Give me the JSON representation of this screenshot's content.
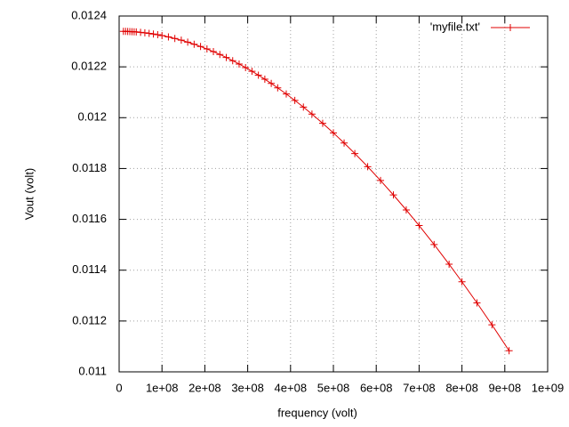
{
  "chart_data": {
    "type": "line",
    "xlabel": "frequency (volt)",
    "ylabel": "Vout (volt)",
    "series": [
      {
        "name": "'myfile.txt'",
        "color": "#e00000",
        "x": [
          10000000,
          15000000,
          20000000,
          25000000,
          30000000,
          35000000,
          40000000,
          50000000,
          60000000,
          70000000,
          80000000,
          90000000,
          100000000,
          115000000,
          130000000,
          145000000,
          160000000,
          175000000,
          190000000,
          205000000,
          220000000,
          235000000,
          250000000,
          265000000,
          280000000,
          295000000,
          310000000,
          325000000,
          340000000,
          355000000,
          370000000,
          390000000,
          410000000,
          430000000,
          450000000,
          475000000,
          500000000,
          525000000,
          550000000,
          580000000,
          610000000,
          640000000,
          670000000,
          700000000,
          735000000,
          770000000,
          800000000,
          835000000,
          870000000,
          910000000
        ],
        "values": [
          0.0123398,
          0.0123396,
          0.0123393,
          0.0123389,
          0.0123385,
          0.0123379,
          0.0123373,
          0.0123358,
          0.0123339,
          0.0123317,
          0.0123292,
          0.0123264,
          0.0123232,
          0.0123178,
          0.0123117,
          0.0123049,
          0.0122973,
          0.012289,
          0.01228,
          0.0122703,
          0.0122598,
          0.0122487,
          0.0122369,
          0.0122243,
          0.0122111,
          0.0121972,
          0.0121826,
          0.0121673,
          0.0121513,
          0.0121347,
          0.0121174,
          0.0120933,
          0.012068,
          0.0120416,
          0.012014,
          0.0119779,
          0.01194,
          0.0119004,
          0.011859,
          0.0118071,
          0.0117528,
          0.0116961,
          0.011637,
          0.0115756,
          0.011501,
          0.0114234,
          0.0113544,
          0.0112712,
          0.011185,
          0.011083
        ]
      }
    ],
    "xlim": [
      0,
      1000000000
    ],
    "xticks": [
      0,
      {
        "value": 100000000,
        "label": "1e+08"
      },
      {
        "value": 200000000,
        "label": "2e+08"
      },
      {
        "value": 300000000,
        "label": "3e+08"
      },
      {
        "value": 400000000,
        "label": "4e+08"
      },
      {
        "value": 500000000,
        "label": "5e+08"
      },
      {
        "value": 600000000,
        "label": "6e+08"
      },
      {
        "value": 700000000,
        "label": "7e+08"
      },
      {
        "value": 800000000,
        "label": "8e+08"
      },
      {
        "value": 900000000,
        "label": "9e+08"
      },
      {
        "value": 1000000000,
        "label": "1e+09"
      }
    ],
    "ylim": [
      0.011,
      0.0124
    ],
    "yticks": [
      0.011,
      0.0112,
      0.0114,
      0.0116,
      0.0118,
      0.012,
      0.0122,
      0.0124
    ],
    "grid": true,
    "legend": "top-right"
  }
}
